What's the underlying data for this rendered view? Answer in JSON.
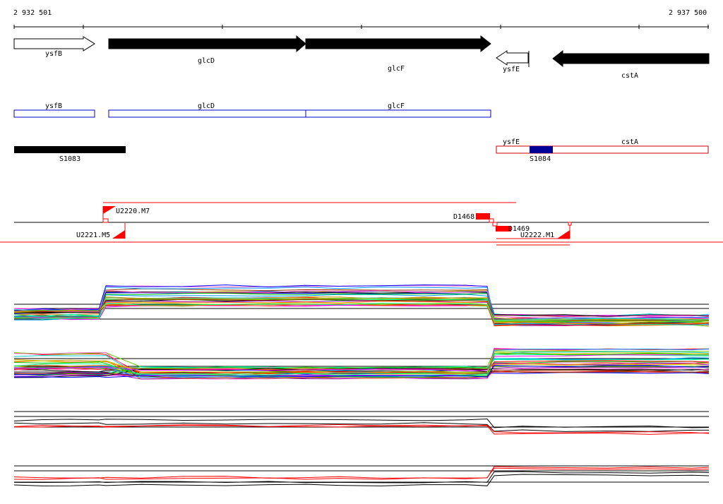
{
  "ruler": {
    "start_label": "2 932 501",
    "end_label": "2 937 500"
  },
  "genes": [
    {
      "name": "ysfB",
      "strand": "+",
      "fill": "white"
    },
    {
      "name": "glcD",
      "strand": "+",
      "fill": "black"
    },
    {
      "name": "glcF",
      "strand": "+",
      "fill": "black"
    },
    {
      "name": "ysfE",
      "strand": "-",
      "fill": "white"
    },
    {
      "name": "cstA",
      "strand": "-",
      "fill": "black"
    }
  ],
  "gene_boxes": [
    {
      "name": "ysfB",
      "color": "#0000cc"
    },
    {
      "name": "glcD",
      "color": "#0000cc"
    },
    {
      "name": "glcF",
      "color": "#0000cc"
    },
    {
      "name": "ysfE",
      "color": "#cc0000"
    },
    {
      "name": "cstA",
      "color": "#cc0000"
    }
  ],
  "segments": [
    {
      "name": "S1083",
      "color": "#000000"
    },
    {
      "name": "S1084",
      "color": "#000099"
    }
  ],
  "features": {
    "u2220": "U2220.M7",
    "u2221": "U2221.M5",
    "d1468": "D1468",
    "d1469": "D1469",
    "u2222": "U2222.M1"
  },
  "colors": {
    "feature_red": "#ff0000",
    "gene_blue": "#0000cc",
    "segment_navy": "#000099"
  }
}
